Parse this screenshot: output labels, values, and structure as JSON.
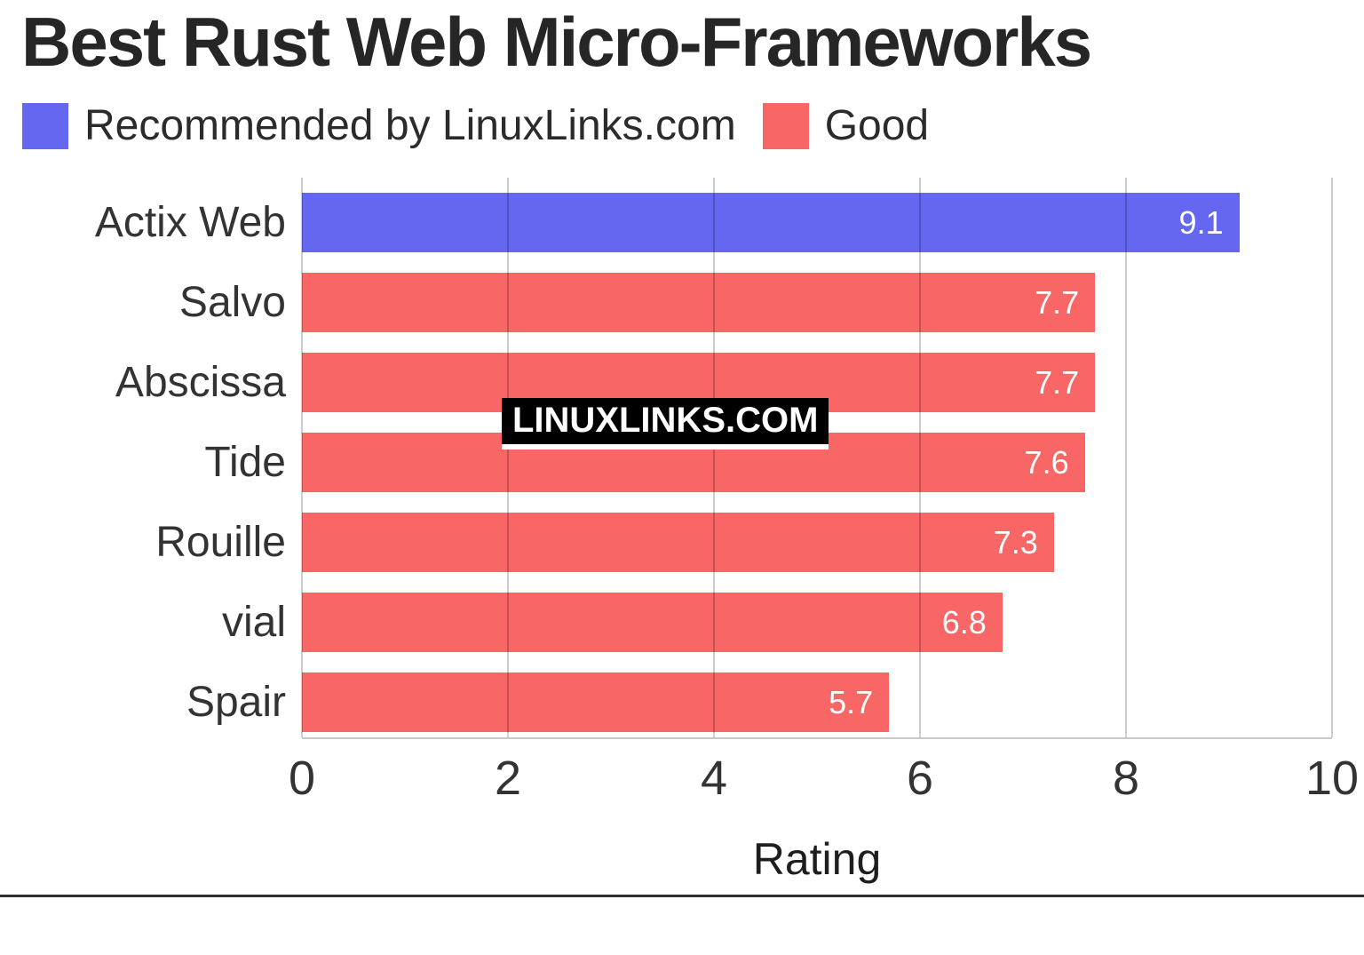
{
  "title": "Best Rust Web Micro-Frameworks",
  "legend": [
    {
      "label": "Recommended by LinuxLinks.com",
      "color": "#6667f1"
    },
    {
      "label": "Good",
      "color": "#f96666"
    }
  ],
  "watermark": "LINUXLINKS.COM",
  "chart_data": {
    "type": "bar",
    "orientation": "horizontal",
    "title": "Best Rust Web Micro-Frameworks",
    "categories": [
      "Actix Web",
      "Salvo",
      "Abscissa",
      "Tide",
      "Rouille",
      "vial",
      "Spair"
    ],
    "values": [
      9.1,
      7.7,
      7.7,
      7.6,
      7.3,
      6.8,
      5.7
    ],
    "value_labels": [
      "9.1",
      "7.7",
      "7.7",
      "7.6",
      "7.3",
      "6.8",
      "5.7"
    ],
    "bar_colors": [
      "#6667f1",
      "#f96666",
      "#f96666",
      "#f96666",
      "#f96666",
      "#f96666",
      "#f96666"
    ],
    "series": [
      {
        "name": "Recommended by LinuxLinks.com",
        "color": "#6667f1",
        "categories": [
          "Actix Web"
        ],
        "values": [
          9.1
        ]
      },
      {
        "name": "Good",
        "color": "#f96666",
        "categories": [
          "Salvo",
          "Abscissa",
          "Tide",
          "Rouille",
          "vial",
          "Spair"
        ],
        "values": [
          7.7,
          7.7,
          7.6,
          7.3,
          6.8,
          5.7
        ]
      }
    ],
    "xlabel": "Rating",
    "ylabel": "",
    "xlim": [
      0,
      10
    ],
    "xticks": [
      0,
      2,
      4,
      6,
      8,
      10
    ],
    "grid": true,
    "gridline_color": "#cccccc",
    "value_label_color": "#ffffff",
    "legend_position": "top"
  }
}
